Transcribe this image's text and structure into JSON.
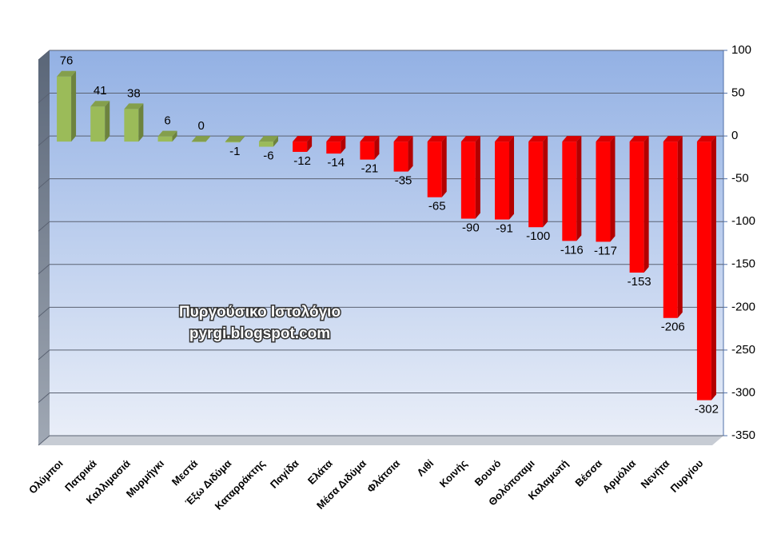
{
  "chart_data": {
    "type": "bar",
    "categories": [
      "Ολύμποι",
      "Πατρικά",
      "Καλλιμασιά",
      "Μυρμήγκι",
      "Μεστά",
      "Έξω Διδύμα",
      "Καταρράκτης",
      "Παγίδα",
      "Ελάτα",
      "Μέσα Διδύμα",
      "Φλάτσια",
      "Λιθί",
      "Κοινής",
      "Βουνό",
      "Θολόποταμι",
      "Καλαμωτή",
      "Βέσσα",
      "Αρμόλια",
      "Νενήτα",
      "Πυργίου"
    ],
    "values": [
      76,
      41,
      38,
      6,
      0,
      -1,
      -6,
      -12,
      -14,
      -21,
      -35,
      -65,
      -90,
      -91,
      -100,
      -116,
      -117,
      -153,
      -206,
      -302
    ],
    "colors": [
      "#9bbb59",
      "#9bbb59",
      "#9bbb59",
      "#9bbb59",
      "#9bbb59",
      "#9bbb59",
      "#9bbb59",
      "#ff0000",
      "#ff0000",
      "#ff0000",
      "#ff0000",
      "#ff0000",
      "#ff0000",
      "#ff0000",
      "#ff0000",
      "#ff0000",
      "#ff0000",
      "#ff0000",
      "#ff0000",
      "#ff0000"
    ],
    "ylim": [
      -350,
      100
    ],
    "yticks": [
      -350,
      -300,
      -250,
      -200,
      -150,
      -100,
      -50,
      0,
      50,
      100
    ],
    "grid": true,
    "annotations": [
      "Πυργούσικο Ιστολόγιο",
      "pyrgi.blogspot.com"
    ]
  }
}
